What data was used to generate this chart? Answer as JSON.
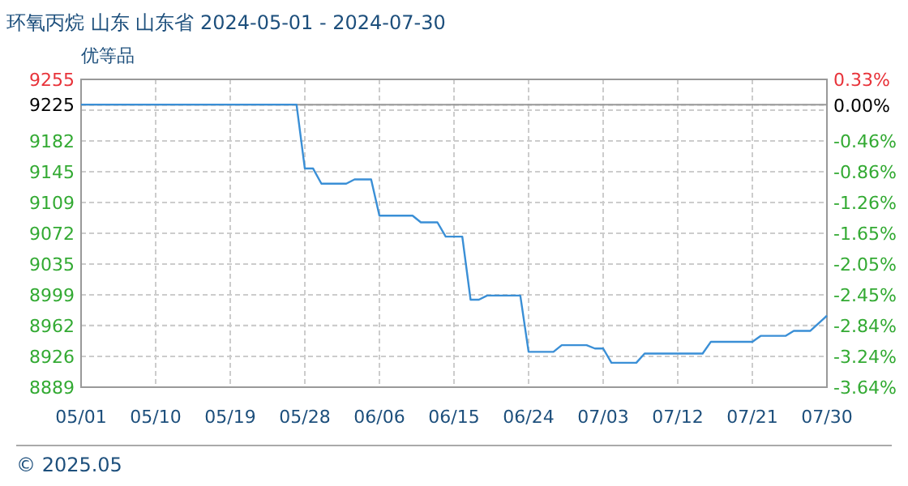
{
  "chart_data": {
    "type": "line",
    "title": "环氧丙烷 山东 山东省 2024-05-01 - 2024-07-30",
    "subtitle": "优等品",
    "x": [
      "2024-05-01",
      "2024-05-27",
      "2024-05-28",
      "2024-05-29",
      "2024-05-30",
      "2024-06-02",
      "2024-06-03",
      "2024-06-05",
      "2024-06-06",
      "2024-06-10",
      "2024-06-11",
      "2024-06-13",
      "2024-06-14",
      "2024-06-16",
      "2024-06-17",
      "2024-06-18",
      "2024-06-19",
      "2024-06-23",
      "2024-06-24",
      "2024-06-27",
      "2024-06-28",
      "2024-07-01",
      "2024-07-02",
      "2024-07-03",
      "2024-07-04",
      "2024-07-07",
      "2024-07-08",
      "2024-07-15",
      "2024-07-16",
      "2024-07-21",
      "2024-07-22",
      "2024-07-25",
      "2024-07-26",
      "2024-07-28",
      "2024-07-30"
    ],
    "series": [
      {
        "color": "#3a8fd6",
        "values": [
          9225,
          9225,
          9149,
          9149,
          9131,
          9131,
          9136,
          9136,
          9093,
          9093,
          9085,
          9085,
          9068,
          9068,
          8993,
          8993,
          8998,
          8998,
          8931,
          8931,
          8939,
          8939,
          8935,
          8935,
          8918,
          8918,
          8929,
          8929,
          8943,
          8943,
          8950,
          8950,
          8956,
          8956,
          8974
        ]
      }
    ],
    "xlim": [
      "2024-05-01",
      "2024-07-30"
    ],
    "xticks": [
      {
        "value": "2024-05-01",
        "label": "05/01"
      },
      {
        "value": "2024-05-10",
        "label": "05/10"
      },
      {
        "value": "2024-05-19",
        "label": "05/19"
      },
      {
        "value": "2024-05-28",
        "label": "05/28"
      },
      {
        "value": "2024-06-06",
        "label": "06/06"
      },
      {
        "value": "2024-06-15",
        "label": "06/15"
      },
      {
        "value": "2024-06-24",
        "label": "06/24"
      },
      {
        "value": "2024-07-03",
        "label": "07/03"
      },
      {
        "value": "2024-07-12",
        "label": "07/12"
      },
      {
        "value": "2024-07-21",
        "label": "07/21"
      },
      {
        "value": "2024-07-30",
        "label": "07/30"
      }
    ],
    "ylim": [
      8889,
      9255
    ],
    "yticks": [
      9255,
      {
        "value": 9218.4,
        "label": null
      },
      {
        "value": 9181.8,
        "label": "9182"
      },
      {
        "value": 9145.2,
        "label": "9145"
      },
      {
        "value": 9108.6,
        "label": "9109"
      },
      9072,
      {
        "value": 9035.4,
        "label": "9035"
      },
      {
        "value": 8998.8,
        "label": "8999"
      },
      {
        "value": 8962.2,
        "label": "8962"
      },
      {
        "value": 8925.6,
        "label": "8926"
      },
      8889
    ],
    "y2lim": [
      -3.64,
      0.33
    ],
    "y2ticks": [
      {
        "value": 0.33,
        "label": "0.33%"
      },
      {
        "value": 0,
        "label": "0.00%"
      },
      {
        "value": -0.067,
        "label": null
      },
      {
        "value": -0.464,
        "label": "-0.46%"
      },
      {
        "value": -0.861,
        "label": "-0.86%"
      },
      {
        "value": -1.258,
        "label": "-1.26%"
      },
      {
        "value": -1.655,
        "label": "-1.65%"
      },
      {
        "value": -2.052,
        "label": "-2.05%"
      },
      {
        "value": -2.449,
        "label": "-2.45%"
      },
      {
        "value": -2.844,
        "label": "-2.84%"
      },
      {
        "value": -3.243,
        "label": "-3.24%"
      },
      {
        "value": -3.64,
        "label": "-3.64%"
      }
    ],
    "ref_lines": [
      {
        "axis": "y",
        "value": 9225,
        "label": "9225",
        "color": "#999999"
      }
    ],
    "grid": true,
    "annotations": [
      "© 2025.05"
    ]
  }
}
